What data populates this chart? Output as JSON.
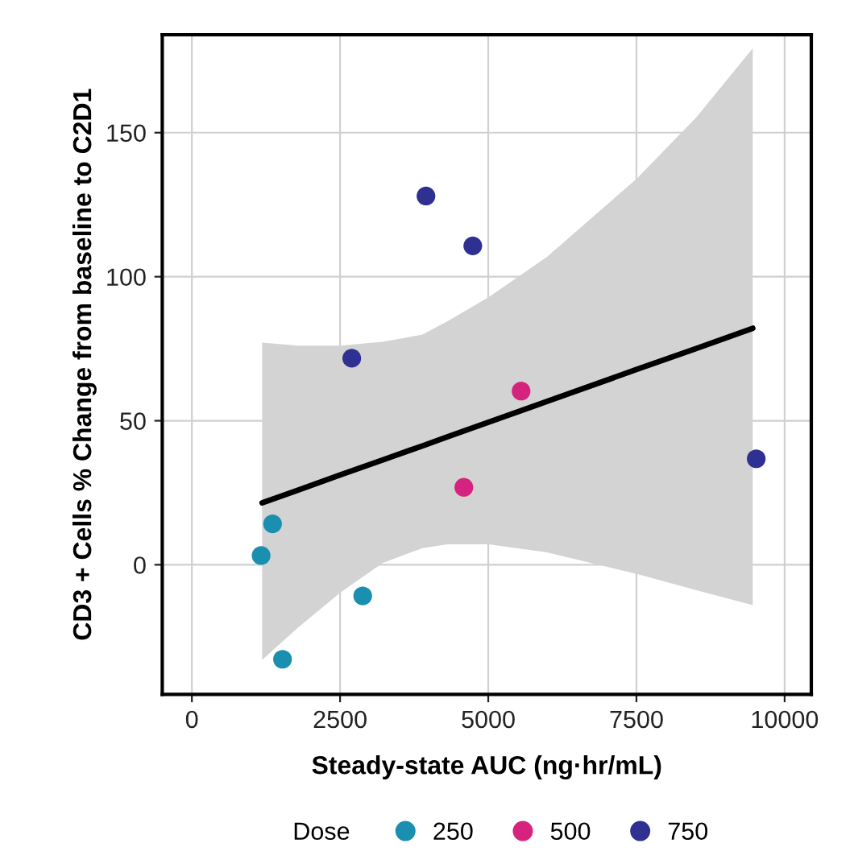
{
  "chart_data": {
    "type": "scatter",
    "xlabel": "Steady-state AUC (ng·hr/mL)",
    "ylabel": "CD3 + Cells % Change from baseline to C2D1",
    "legend_title": "Dose",
    "legend": "bottom",
    "grid": true,
    "marker": "circle",
    "xlim": [
      -500,
      10450
    ],
    "ylim": [
      -45,
      184
    ],
    "xticks": [
      0,
      2500,
      5000,
      7500,
      10000
    ],
    "yticks": [
      0,
      50,
      100,
      150
    ],
    "series": [
      {
        "name": "250",
        "color": "#1a8fb0",
        "x": [
          1361,
          1168,
          2882,
          1529
        ],
        "values": [
          14.2,
          3.2,
          -10.8,
          -32.8
        ]
      },
      {
        "name": "500",
        "color": "#d6237f",
        "x": [
          4588,
          5554
        ],
        "values": [
          26.9,
          60.3
        ]
      },
      {
        "name": "750",
        "color": "#2e3192",
        "x": [
          3949,
          4739,
          2697,
          9521
        ],
        "values": [
          128,
          110.7,
          71.7,
          36.8
        ]
      },
      {
        "type": "line",
        "marker": "none",
        "color": "#000000",
        "line_style": "solid",
        "x": [
          1185,
          1790,
          2504,
          3218,
          3891,
          4311,
          5008,
          5991,
          7504,
          8512,
          9462
        ],
        "values": [
          21.5,
          25.9,
          31.2,
          36.4,
          41.3,
          44.4,
          49.5,
          56.7,
          67.8,
          75.1,
          82.1
        ],
        "lower": [
          -33.0,
          -21.8,
          -9.7,
          0.6,
          5.8,
          7.1,
          7.1,
          4.3,
          -3.2,
          -8.8,
          -14.0
        ],
        "upper": [
          77.1,
          76.1,
          76.1,
          77.4,
          79.9,
          84.5,
          92.9,
          106.9,
          134.0,
          155.4,
          179.3
        ]
      }
    ]
  }
}
